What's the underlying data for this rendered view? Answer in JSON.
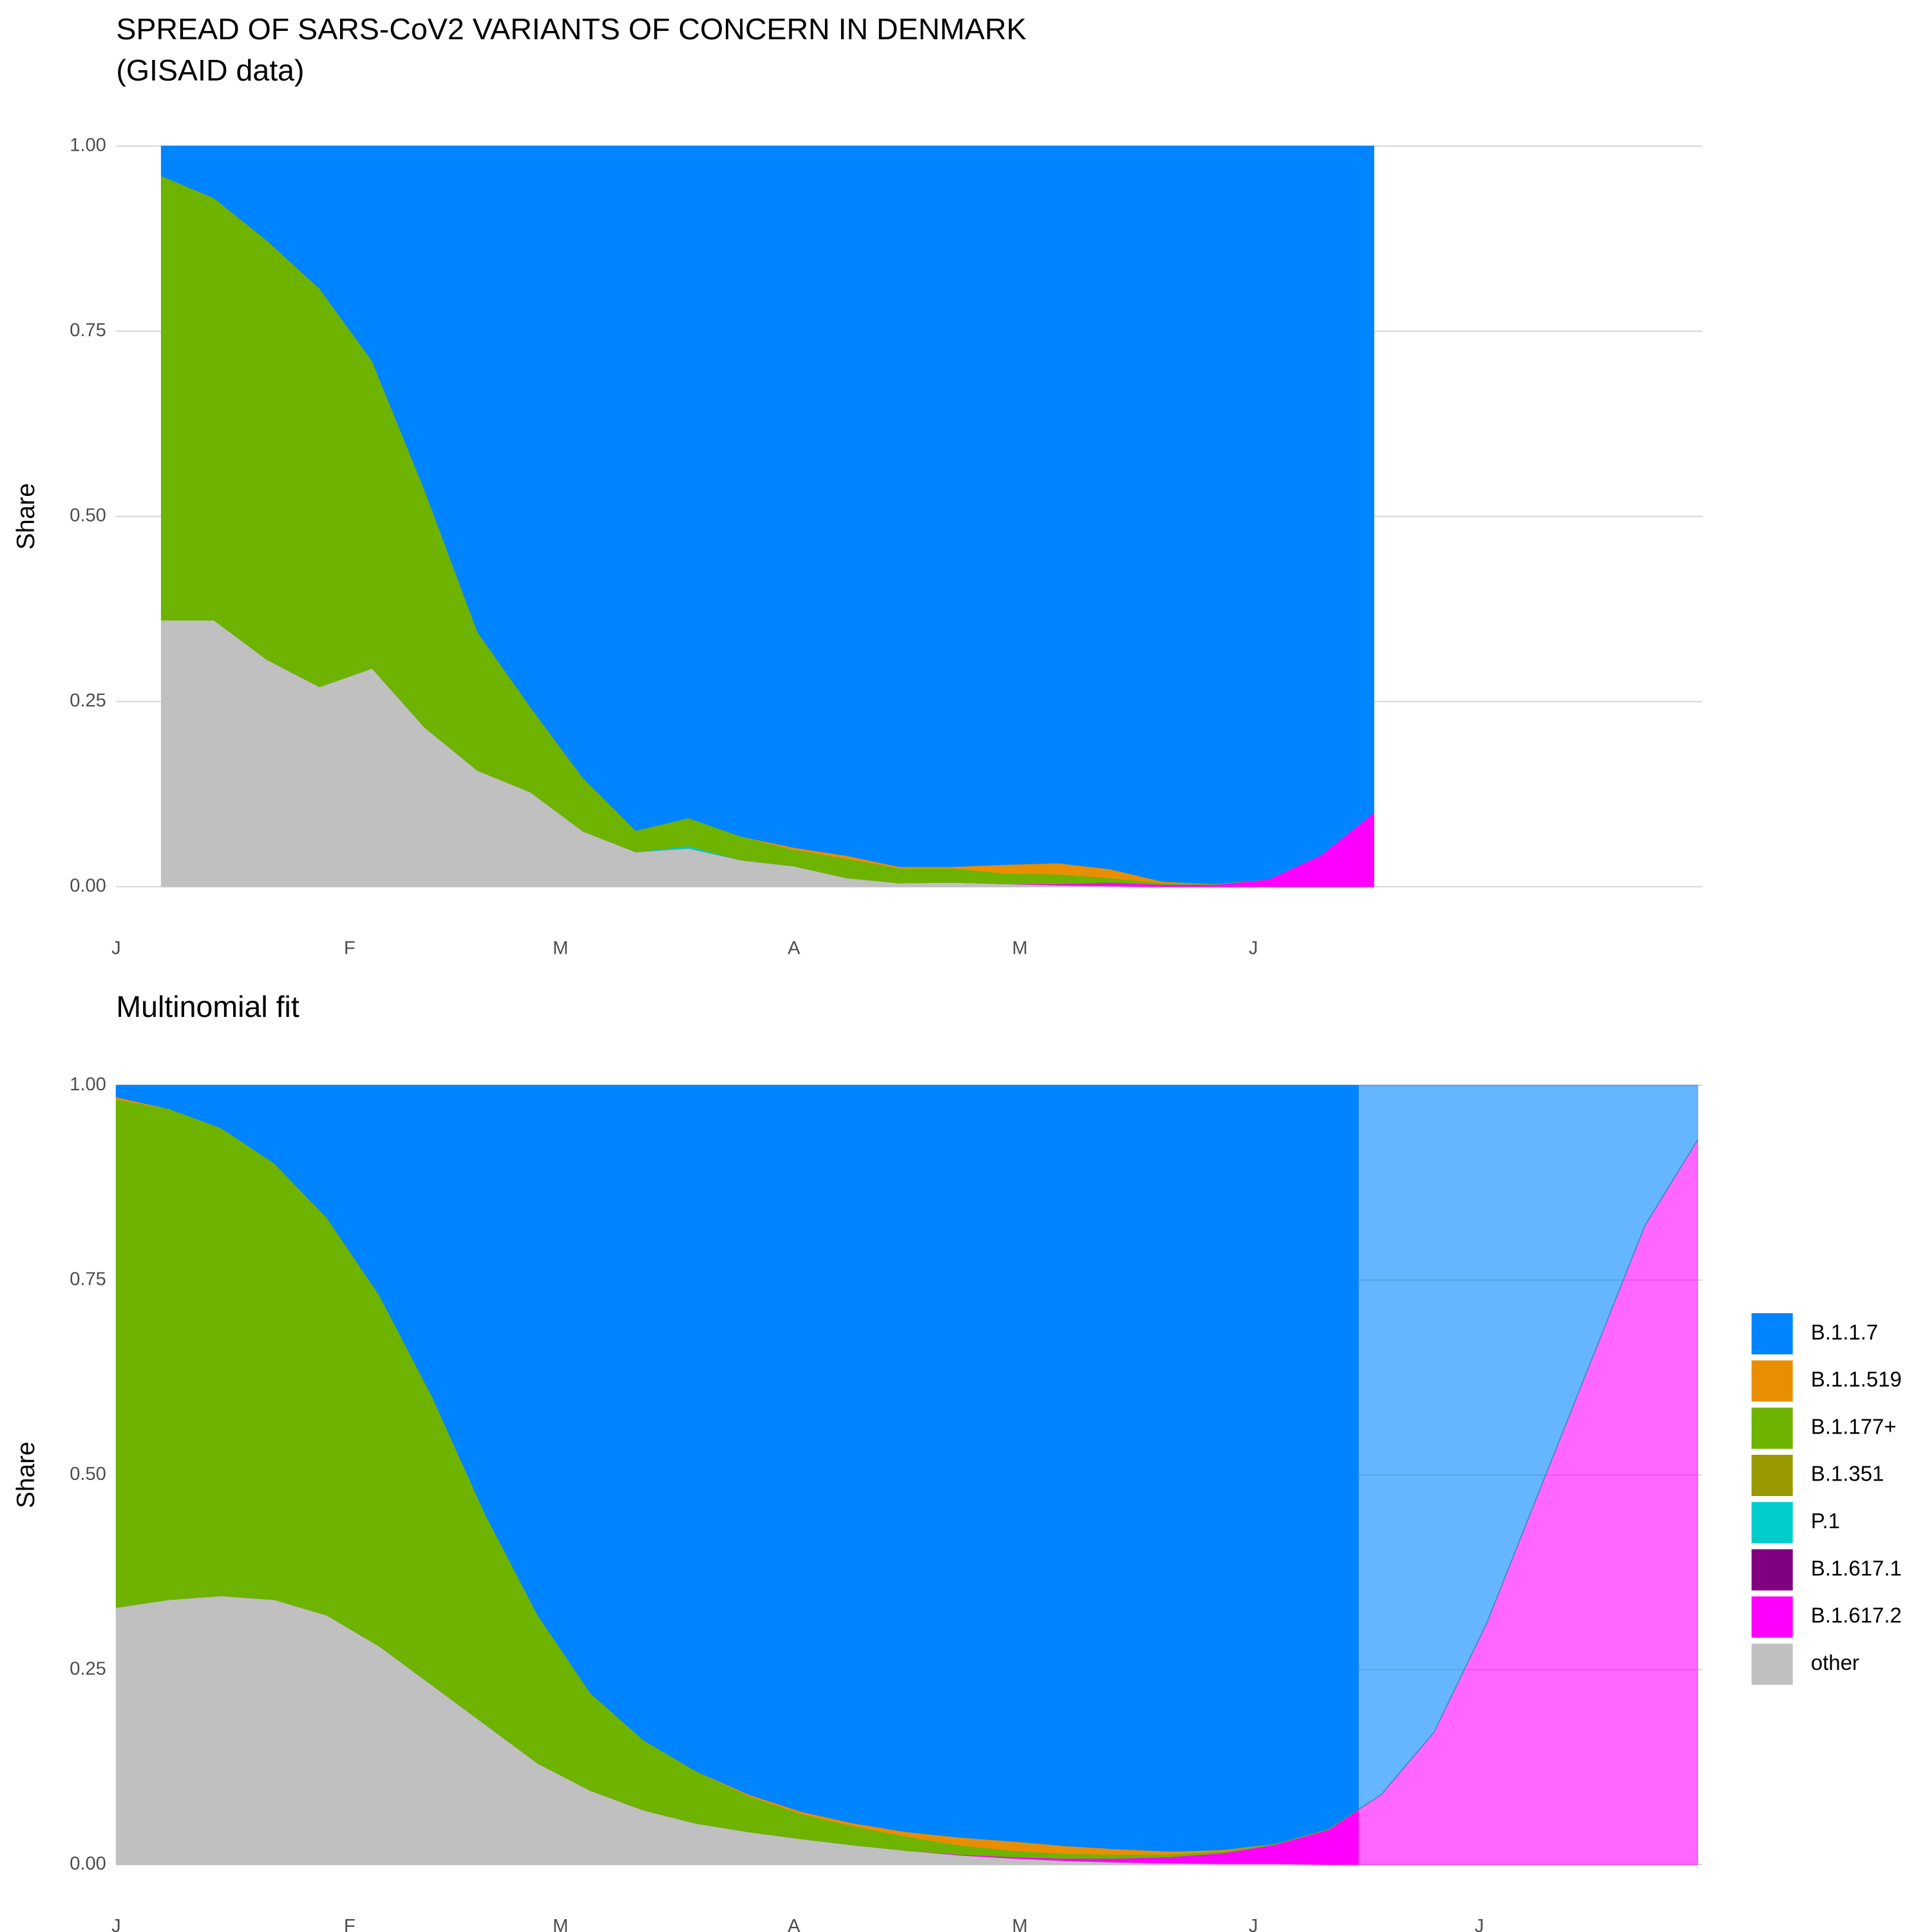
{
  "chart_data": [
    {
      "type": "area",
      "stacked": true,
      "title": "SPREAD OF SARS-CoV2 VARIANTS OF CONCERN IN DENMARK",
      "subtitle": "(GISAID data)",
      "y_label": "Share",
      "x": [
        6,
        13,
        20,
        27,
        34,
        41,
        48,
        55,
        62,
        69,
        76,
        83,
        90,
        97,
        104,
        111,
        118,
        125,
        132,
        139,
        146,
        153,
        160,
        167
      ],
      "xlim": [
        0,
        210.6
      ],
      "xticks": [
        {
          "value": 0,
          "label": "J"
        },
        {
          "value": 31,
          "label": "F"
        },
        {
          "value": 59,
          "label": "M"
        },
        {
          "value": 90,
          "label": "A"
        },
        {
          "value": 120,
          "label": "M"
        },
        {
          "value": 151,
          "label": "J"
        }
      ],
      "ylim": [
        0,
        1
      ],
      "yticks": [
        {
          "value": 0,
          "label": "0.00"
        },
        {
          "value": 0.25,
          "label": "0.25"
        },
        {
          "value": 0.5,
          "label": "0.50"
        },
        {
          "value": 0.75,
          "label": "0.75"
        },
        {
          "value": 1,
          "label": "1.00"
        }
      ],
      "grid": true,
      "series": [
        {
          "name": "B.1.1.7",
          "color": "#0084ff",
          "values": [
            0.04,
            0.07,
            0.127,
            0.192,
            0.29,
            0.465,
            0.656,
            0.757,
            0.853,
            0.924,
            0.907,
            0.932,
            0.947,
            0.958,
            0.973,
            0.973,
            0.97,
            0.968,
            0.976,
            0.993,
            0.996,
            0.99,
            0.957,
            0.9
          ]
        },
        {
          "name": "B.1.1.519",
          "color": "#e88e00",
          "values": [
            0,
            0,
            0,
            0,
            0,
            0,
            0,
            0,
            0,
            0,
            0,
            0,
            0.003,
            0.004,
            0.002,
            0.002,
            0.012,
            0.015,
            0.012,
            0.002,
            0,
            0,
            0,
            0
          ]
        },
        {
          "name": "B.1.177+",
          "color": "#6db300",
          "values": [
            0.6,
            0.57,
            0.566,
            0.538,
            0.415,
            0.32,
            0.187,
            0.115,
            0.072,
            0.029,
            0.038,
            0.032,
            0.022,
            0.026,
            0.02,
            0.019,
            0.014,
            0.013,
            0.006,
            0.002,
            0.001,
            0,
            0,
            0
          ]
        },
        {
          "name": "B.1.351",
          "color": "#999900",
          "values": [
            0,
            0,
            0,
            0,
            0,
            0,
            0,
            0,
            0,
            0,
            0,
            0,
            0,
            0,
            0,
            0,
            0,
            0,
            0,
            0,
            0,
            0,
            0,
            0
          ]
        },
        {
          "name": "P.1",
          "color": "#00cccc",
          "values": [
            0,
            0,
            0,
            0,
            0,
            0,
            0,
            0,
            0,
            0,
            0.003,
            0,
            0,
            0,
            0,
            0,
            0,
            0,
            0,
            0,
            0,
            0,
            0,
            0
          ]
        },
        {
          "name": "B.1.617.1",
          "color": "#800080",
          "values": [
            0,
            0,
            0,
            0,
            0,
            0,
            0,
            0,
            0,
            0,
            0,
            0,
            0,
            0,
            0,
            0,
            0,
            0,
            0,
            0,
            0,
            0,
            0,
            0
          ]
        },
        {
          "name": "B.1.617.2",
          "color": "#ff00ff",
          "values": [
            0,
            0,
            0,
            0,
            0,
            0,
            0,
            0,
            0,
            0,
            0,
            0,
            0,
            0,
            0,
            0,
            0,
            0.002,
            0.005,
            0.003,
            0.003,
            0.01,
            0.043,
            0.1
          ]
        },
        {
          "name": "other",
          "color": "#c0c0c0",
          "values": [
            0.36,
            0.36,
            0.307,
            0.27,
            0.295,
            0.215,
            0.157,
            0.128,
            0.075,
            0.047,
            0.052,
            0.036,
            0.028,
            0.012,
            0.005,
            0.006,
            0.004,
            0.002,
            0.001,
            0,
            0,
            0,
            0,
            0
          ]
        }
      ]
    },
    {
      "type": "area",
      "stacked": true,
      "title": "Multinomial fit",
      "y_label": "Share",
      "x": [
        0,
        7,
        14,
        21,
        28,
        35,
        42,
        49,
        56,
        63,
        70,
        77,
        84,
        91,
        98,
        105,
        112,
        119,
        126,
        133,
        140,
        147,
        154,
        161,
        168,
        175,
        182,
        189,
        196,
        203,
        210
      ],
      "xlim": [
        0,
        210.6
      ],
      "projection_from": 165,
      "xticks": [
        {
          "value": 0,
          "label": "J"
        },
        {
          "value": 31,
          "label": "F"
        },
        {
          "value": 59,
          "label": "M"
        },
        {
          "value": 90,
          "label": "A"
        },
        {
          "value": 120,
          "label": "M"
        },
        {
          "value": 151,
          "label": "J"
        },
        {
          "value": 181,
          "label": "J"
        }
      ],
      "ylim": [
        0,
        1
      ],
      "yticks": [
        {
          "value": 0,
          "label": "0.00"
        },
        {
          "value": 0.25,
          "label": "0.25"
        },
        {
          "value": 0.5,
          "label": "0.50"
        },
        {
          "value": 0.75,
          "label": "0.75"
        },
        {
          "value": 1,
          "label": "1.00"
        }
      ],
      "grid": true,
      "legend": "right",
      "series": [
        {
          "name": "B.1.1.7",
          "color": "#0084ff",
          "values": [
            0.015,
            0.03,
            0.055,
            0.1,
            0.17,
            0.27,
            0.4,
            0.55,
            0.68,
            0.78,
            0.84,
            0.88,
            0.91,
            0.932,
            0.947,
            0.958,
            0.965,
            0.97,
            0.976,
            0.98,
            0.983,
            0.981,
            0.973,
            0.954,
            0.91,
            0.83,
            0.69,
            0.52,
            0.35,
            0.18,
            0.07
          ]
        },
        {
          "name": "B.1.1.519",
          "color": "#e88e00",
          "values": [
            0.003,
            0,
            0,
            0,
            0,
            0,
            0,
            0,
            0,
            0,
            0,
            0,
            0.002,
            0.003,
            0.004,
            0.006,
            0.01,
            0.012,
            0.01,
            0.007,
            0.004,
            0.002,
            0,
            0,
            0,
            0,
            0,
            0,
            0,
            0,
            0
          ]
        },
        {
          "name": "B.1.177+",
          "color": "#6db300",
          "values": [
            0.652,
            0.63,
            0.6,
            0.56,
            0.51,
            0.45,
            0.37,
            0.27,
            0.19,
            0.125,
            0.09,
            0.067,
            0.046,
            0.032,
            0.024,
            0.018,
            0.012,
            0.008,
            0.006,
            0.005,
            0.003,
            0.002,
            0.001,
            0.001,
            0,
            0,
            0,
            0,
            0,
            0,
            0
          ]
        },
        {
          "name": "B.1.351",
          "color": "#999900",
          "values": [
            0,
            0,
            0,
            0,
            0,
            0,
            0,
            0,
            0,
            0,
            0,
            0,
            0,
            0,
            0,
            0,
            0,
            0,
            0,
            0,
            0,
            0,
            0,
            0,
            0,
            0,
            0,
            0,
            0,
            0,
            0
          ]
        },
        {
          "name": "P.1",
          "color": "#00cccc",
          "values": [
            0,
            0,
            0,
            0,
            0,
            0,
            0,
            0,
            0,
            0,
            0,
            0,
            0,
            0,
            0,
            0,
            0,
            0,
            0,
            0,
            0,
            0,
            0,
            0,
            0,
            0,
            0,
            0,
            0,
            0,
            0
          ]
        },
        {
          "name": "B.1.617.1",
          "color": "#800080",
          "values": [
            0,
            0,
            0,
            0,
            0,
            0,
            0,
            0,
            0,
            0,
            0,
            0,
            0,
            0,
            0,
            0,
            0,
            0,
            0,
            0,
            0,
            0,
            0,
            0,
            0,
            0,
            0,
            0,
            0,
            0,
            0
          ]
        },
        {
          "name": "B.1.617.2",
          "color": "#ff00ff",
          "values": [
            0,
            0,
            0,
            0,
            0,
            0,
            0,
            0,
            0,
            0,
            0,
            0,
            0,
            0,
            0,
            0,
            0.001,
            0.002,
            0.003,
            0.005,
            0.008,
            0.014,
            0.025,
            0.045,
            0.09,
            0.17,
            0.31,
            0.48,
            0.65,
            0.82,
            0.93
          ]
        },
        {
          "name": "other",
          "color": "#c0c0c0",
          "values": [
            0.33,
            0.34,
            0.345,
            0.34,
            0.32,
            0.28,
            0.23,
            0.18,
            0.13,
            0.095,
            0.07,
            0.053,
            0.042,
            0.033,
            0.025,
            0.018,
            0.012,
            0.008,
            0.005,
            0.003,
            0.002,
            0.001,
            0.001,
            0,
            0,
            0,
            0,
            0,
            0,
            0,
            0
          ]
        }
      ]
    }
  ]
}
